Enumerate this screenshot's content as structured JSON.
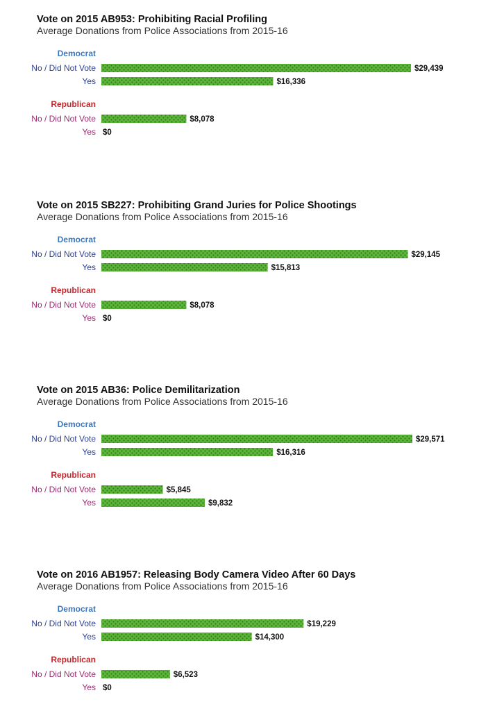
{
  "colors": {
    "democrat": "#3a78c0",
    "republican": "#c0282d",
    "dem_row_label": "#2d3f8f",
    "rep_row_label": "#9a2a6f",
    "bar_fill": "#5cb53a",
    "bar_pattern": "#2f7d1a"
  },
  "chart_data": [
    {
      "type": "bar",
      "title": "Vote on 2015 AB953: Prohibiting Racial Profiling",
      "subtitle": "Average Donations from Police Associations from 2015-16",
      "groups": [
        {
          "name": "Democrat",
          "rows": [
            {
              "label": "No / Did Not Vote",
              "value": 29439,
              "value_label": "$29,439"
            },
            {
              "label": "Yes",
              "value": 16336,
              "value_label": "$16,336"
            }
          ]
        },
        {
          "name": "Republican",
          "rows": [
            {
              "label": "No / Did Not Vote",
              "value": 8078,
              "value_label": "$8,078"
            },
            {
              "label": "Yes",
              "value": 0,
              "value_label": "$0"
            }
          ]
        }
      ]
    },
    {
      "type": "bar",
      "title": "Vote on 2015 SB227: Prohibiting Grand Juries for Police Shootings",
      "subtitle": "Average Donations from Police Associations from 2015-16",
      "groups": [
        {
          "name": "Democrat",
          "rows": [
            {
              "label": "No / Did Not Vote",
              "value": 29145,
              "value_label": "$29,145"
            },
            {
              "label": "Yes",
              "value": 15813,
              "value_label": "$15,813"
            }
          ]
        },
        {
          "name": "Republican",
          "rows": [
            {
              "label": "No / Did Not Vote",
              "value": 8078,
              "value_label": "$8,078"
            },
            {
              "label": "Yes",
              "value": 0,
              "value_label": "$0"
            }
          ]
        }
      ]
    },
    {
      "type": "bar",
      "title": "Vote on 2015 AB36: Police Demilitarization",
      "subtitle": "Average Donations from Police Associations from 2015-16",
      "groups": [
        {
          "name": "Democrat",
          "rows": [
            {
              "label": "No / Did Not Vote",
              "value": 29571,
              "value_label": "$29,571"
            },
            {
              "label": "Yes",
              "value": 16316,
              "value_label": "$16,316"
            }
          ]
        },
        {
          "name": "Republican",
          "rows": [
            {
              "label": "No / Did Not Vote",
              "value": 5845,
              "value_label": "$5,845"
            },
            {
              "label": "Yes",
              "value": 9832,
              "value_label": "$9,832"
            }
          ]
        }
      ]
    },
    {
      "type": "bar",
      "title": "Vote on 2016 AB1957: Releasing Body Camera Video After 60 Days",
      "subtitle": "Average Donations from Police Associations from 2015-16",
      "groups": [
        {
          "name": "Democrat",
          "rows": [
            {
              "label": "No / Did Not Vote",
              "value": 19229,
              "value_label": "$19,229"
            },
            {
              "label": "Yes",
              "value": 14300,
              "value_label": "$14,300"
            }
          ]
        },
        {
          "name": "Republican",
          "rows": [
            {
              "label": "No / Did Not Vote",
              "value": 6523,
              "value_label": "$6,523"
            },
            {
              "label": "Yes",
              "value": 0,
              "value_label": "$0"
            }
          ]
        }
      ]
    }
  ]
}
